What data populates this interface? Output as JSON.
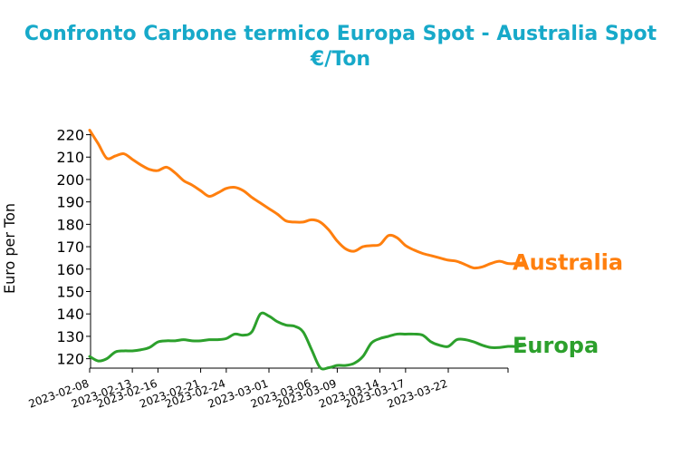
{
  "title_line1": "Confronto Carbone termico Europa Spot - Australia Spot",
  "title_line2": "€/Ton",
  "chart_data": {
    "type": "line",
    "title": "Confronto Carbone termico Europa Spot - Australia Spot €/Ton",
    "xlabel": "",
    "ylabel": "Euro per Ton",
    "ylim": [
      116,
      222
    ],
    "yticks": [
      120,
      130,
      140,
      150,
      160,
      170,
      180,
      190,
      200,
      210,
      220
    ],
    "xlim": [
      "2023-02-08",
      "2023-03-29"
    ],
    "xticks": [
      "2023-02-08",
      "2023-02-13",
      "2023-02-16",
      "2023-02-21",
      "2023-02-24",
      "2023-03-01",
      "2023-03-06",
      "2023-03-09",
      "2023-03-14",
      "2023-03-17",
      "2023-03-22"
    ],
    "grid": false,
    "legend": "end-of-line labels",
    "series": [
      {
        "name": "Australia",
        "color": "#ff7f0e",
        "points": [
          [
            "2023-02-08",
            222
          ],
          [
            "2023-02-09",
            216
          ],
          [
            "2023-02-10",
            209.5
          ],
          [
            "2023-02-11",
            210.5
          ],
          [
            "2023-02-12",
            211.5
          ],
          [
            "2023-02-13",
            209
          ],
          [
            "2023-02-14",
            206.5
          ],
          [
            "2023-02-15",
            204.5
          ],
          [
            "2023-02-16",
            204
          ],
          [
            "2023-02-17",
            205.5
          ],
          [
            "2023-02-18",
            203
          ],
          [
            "2023-02-19",
            199.5
          ],
          [
            "2023-02-20",
            197.5
          ],
          [
            "2023-02-21",
            195
          ],
          [
            "2023-02-22",
            192.5
          ],
          [
            "2023-02-23",
            194
          ],
          [
            "2023-02-24",
            196
          ],
          [
            "2023-02-25",
            196.5
          ],
          [
            "2023-02-26",
            195
          ],
          [
            "2023-02-27",
            192
          ],
          [
            "2023-02-28",
            189.5
          ],
          [
            "2023-03-01",
            187
          ],
          [
            "2023-03-02",
            184.5
          ],
          [
            "2023-03-03",
            181.5
          ],
          [
            "2023-03-04",
            181
          ],
          [
            "2023-03-05",
            181
          ],
          [
            "2023-03-06",
            182
          ],
          [
            "2023-03-07",
            181
          ],
          [
            "2023-03-08",
            177.5
          ],
          [
            "2023-03-09",
            172.5
          ],
          [
            "2023-03-10",
            169
          ],
          [
            "2023-03-11",
            168
          ],
          [
            "2023-03-12",
            170
          ],
          [
            "2023-03-13",
            170.5
          ],
          [
            "2023-03-14",
            171
          ],
          [
            "2023-03-15",
            175
          ],
          [
            "2023-03-16",
            174
          ],
          [
            "2023-03-17",
            170.5
          ],
          [
            "2023-03-18",
            168.5
          ],
          [
            "2023-03-19",
            167
          ],
          [
            "2023-03-20",
            166
          ],
          [
            "2023-03-21",
            165
          ],
          [
            "2023-03-22",
            164
          ],
          [
            "2023-03-23",
            163.5
          ],
          [
            "2023-03-24",
            162
          ],
          [
            "2023-03-25",
            160.5
          ],
          [
            "2023-03-26",
            161
          ],
          [
            "2023-03-27",
            162.5
          ],
          [
            "2023-03-28",
            163.5
          ],
          [
            "2023-03-29",
            162.5
          ],
          [
            "2023-03-30",
            162.5
          ],
          [
            "2023-03-31",
            163
          ]
        ]
      },
      {
        "name": "Europa",
        "color": "#2ca02c",
        "points": [
          [
            "2023-02-08",
            121
          ],
          [
            "2023-02-09",
            119
          ],
          [
            "2023-02-10",
            120
          ],
          [
            "2023-02-11",
            123
          ],
          [
            "2023-02-12",
            123.5
          ],
          [
            "2023-02-13",
            123.5
          ],
          [
            "2023-02-14",
            124
          ],
          [
            "2023-02-15",
            125
          ],
          [
            "2023-02-16",
            127.5
          ],
          [
            "2023-02-17",
            128
          ],
          [
            "2023-02-18",
            128
          ],
          [
            "2023-02-19",
            128.5
          ],
          [
            "2023-02-20",
            128
          ],
          [
            "2023-02-21",
            128
          ],
          [
            "2023-02-22",
            128.5
          ],
          [
            "2023-02-23",
            128.5
          ],
          [
            "2023-02-24",
            129
          ],
          [
            "2023-02-25",
            131
          ],
          [
            "2023-02-26",
            130.5
          ],
          [
            "2023-02-27",
            132
          ],
          [
            "2023-02-28",
            140
          ],
          [
            "2023-03-01",
            139
          ],
          [
            "2023-03-02",
            136.5
          ],
          [
            "2023-03-03",
            135
          ],
          [
            "2023-03-04",
            134.5
          ],
          [
            "2023-03-05",
            132
          ],
          [
            "2023-03-06",
            124
          ],
          [
            "2023-03-07",
            116
          ],
          [
            "2023-03-08",
            116
          ],
          [
            "2023-03-09",
            117
          ],
          [
            "2023-03-10",
            117
          ],
          [
            "2023-03-11",
            118
          ],
          [
            "2023-03-12",
            121
          ],
          [
            "2023-03-13",
            127
          ],
          [
            "2023-03-14",
            129
          ],
          [
            "2023-03-15",
            130
          ],
          [
            "2023-03-16",
            131
          ],
          [
            "2023-03-17",
            131
          ],
          [
            "2023-03-18",
            131
          ],
          [
            "2023-03-19",
            130.5
          ],
          [
            "2023-03-20",
            127.5
          ],
          [
            "2023-03-21",
            126
          ],
          [
            "2023-03-22",
            125.5
          ],
          [
            "2023-03-23",
            128.5
          ],
          [
            "2023-03-24",
            128.5
          ],
          [
            "2023-03-25",
            127.5
          ],
          [
            "2023-03-26",
            126
          ],
          [
            "2023-03-27",
            125
          ],
          [
            "2023-03-28",
            125
          ],
          [
            "2023-03-29",
            125.5
          ],
          [
            "2023-03-30",
            125.5
          ],
          [
            "2023-03-31",
            126
          ]
        ]
      }
    ]
  }
}
